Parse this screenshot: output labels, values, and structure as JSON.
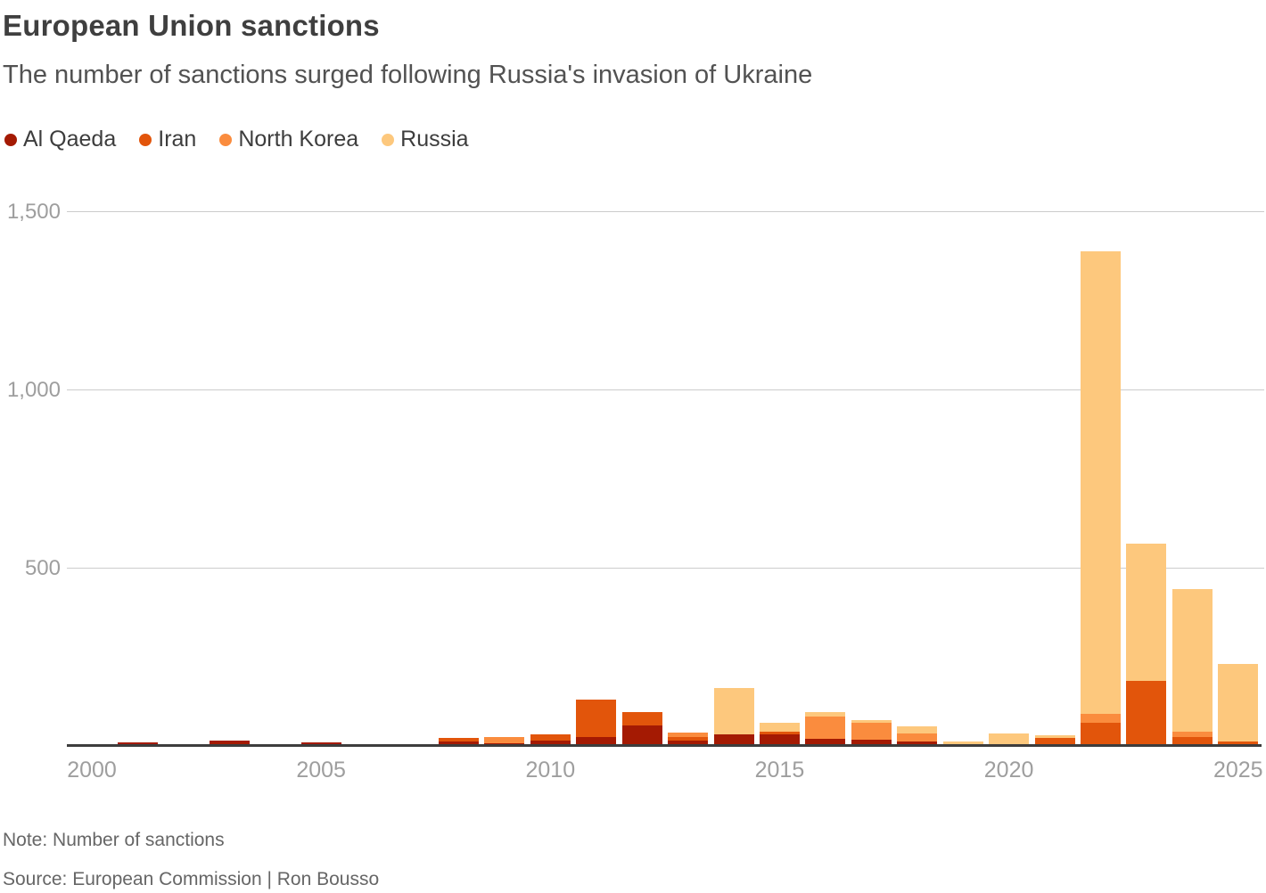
{
  "header": {
    "title": "European Union sanctions",
    "subtitle": "The number of sanctions surged following Russia's invasion of Ukraine"
  },
  "legend": [
    {
      "label": "Al Qaeda",
      "color": "#a41a03"
    },
    {
      "label": "Iran",
      "color": "#e2550b"
    },
    {
      "label": "North Korea",
      "color": "#fa8c3e"
    },
    {
      "label": "Russia",
      "color": "#fdc87d"
    }
  ],
  "colors": {
    "al_qaeda": "#a41a03",
    "iran": "#e2550b",
    "north_korea": "#fa8c3e",
    "russia": "#fdc87d",
    "axis_line": "#3d3d3d",
    "gridline": "#cccccc",
    "tick_label": "#9e9e9e"
  },
  "chart_data": {
    "type": "bar",
    "stacked": true,
    "title": "European Union sanctions",
    "subtitle": "The number of sanctions surged following Russia's invasion of Ukraine",
    "xlabel": "",
    "ylabel": "Number of sanctions",
    "ylim": [
      0,
      1500
    ],
    "grid": true,
    "legend_position": "top",
    "x": [
      2000,
      2001,
      2002,
      2003,
      2004,
      2005,
      2006,
      2007,
      2008,
      2009,
      2010,
      2011,
      2012,
      2013,
      2014,
      2015,
      2016,
      2017,
      2018,
      2019,
      2020,
      2021,
      2022,
      2023,
      2024,
      2025
    ],
    "xticks": [
      2000,
      2005,
      2010,
      2015,
      2020,
      2025
    ],
    "xtick_labels": [
      "2000",
      "2005",
      "2010",
      "2015",
      "2020",
      "2025"
    ],
    "yticks": [
      500,
      1000,
      1500
    ],
    "ytick_labels": [
      "500",
      "1,000",
      "1,500"
    ],
    "series": [
      {
        "name": "Al Qaeda",
        "color": "#a41a03",
        "values": [
          0,
          10,
          6,
          14,
          5,
          9,
          6,
          0,
          12,
          8,
          15,
          25,
          57,
          15,
          33,
          33,
          20,
          17,
          12,
          0,
          0,
          0,
          0,
          0,
          0,
          0
        ]
      },
      {
        "name": "Iran",
        "color": "#e2550b",
        "values": [
          0,
          0,
          0,
          0,
          0,
          0,
          0,
          0,
          10,
          0,
          17,
          105,
          38,
          10,
          0,
          8,
          0,
          0,
          0,
          0,
          0,
          22,
          65,
          183,
          25,
          13
        ]
      },
      {
        "name": "North Korea",
        "color": "#fa8c3e",
        "values": [
          0,
          0,
          0,
          0,
          0,
          0,
          0,
          0,
          0,
          18,
          0,
          0,
          0,
          12,
          0,
          0,
          63,
          47,
          23,
          0,
          0,
          0,
          24,
          0,
          14,
          0
        ]
      },
      {
        "name": "Russia",
        "color": "#fdc87d",
        "values": [
          0,
          0,
          0,
          0,
          0,
          0,
          0,
          0,
          0,
          0,
          0,
          0,
          0,
          0,
          130,
          23,
          12,
          8,
          20,
          12,
          35,
          8,
          1298,
          385,
          402,
          216
        ]
      }
    ]
  },
  "footer": {
    "note": "Note: Number of sanctions",
    "source": "Source: European Commission  | Ron Bousso"
  }
}
